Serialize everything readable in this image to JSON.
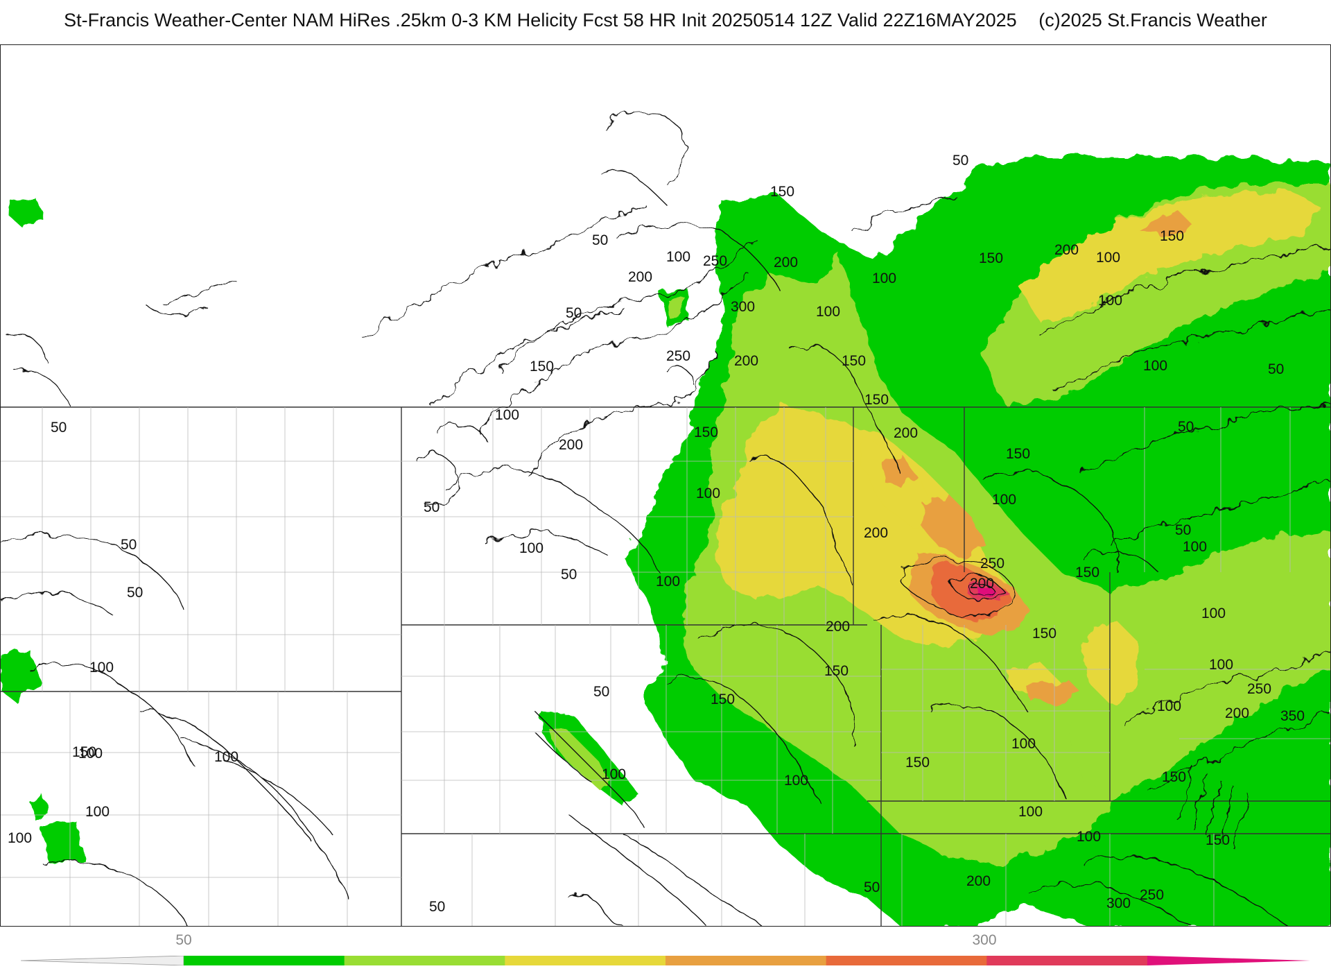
{
  "header": {
    "title": "St-Francis Weather-Center NAM HiRes .25km 0-3 KM Helicity Fcst 58 HR Init 20250514 12Z  Valid 22Z16MAY2025",
    "copyright": "(c)2025 St.Francis Weather"
  },
  "legend": {
    "tick_labels": [
      "50",
      "300"
    ],
    "colors": [
      "#00cc00",
      "#99dd33",
      "#e6d83a",
      "#e8a040",
      "#e86a3a",
      "#e03a5a",
      "#e0107a"
    ]
  },
  "map": {
    "contour_labels": [
      "50",
      "50",
      "50",
      "50",
      "50",
      "50",
      "50",
      "50",
      "50",
      "50",
      "50",
      "50",
      "50",
      "50",
      "100",
      "100",
      "100",
      "100",
      "100",
      "100",
      "100",
      "100",
      "100",
      "100",
      "100",
      "100",
      "100",
      "100",
      "100",
      "100",
      "100",
      "100",
      "100",
      "100",
      "100",
      "100",
      "100",
      "100",
      "100",
      "150",
      "150",
      "150",
      "150",
      "150",
      "150",
      "150",
      "150",
      "150",
      "150",
      "150",
      "150",
      "150",
      "150",
      "150",
      "150",
      "200",
      "200",
      "200",
      "200",
      "200",
      "200",
      "200",
      "200",
      "200",
      "200",
      "200",
      "250",
      "250",
      "250",
      "250",
      "250",
      "300",
      "300",
      "350"
    ]
  }
}
